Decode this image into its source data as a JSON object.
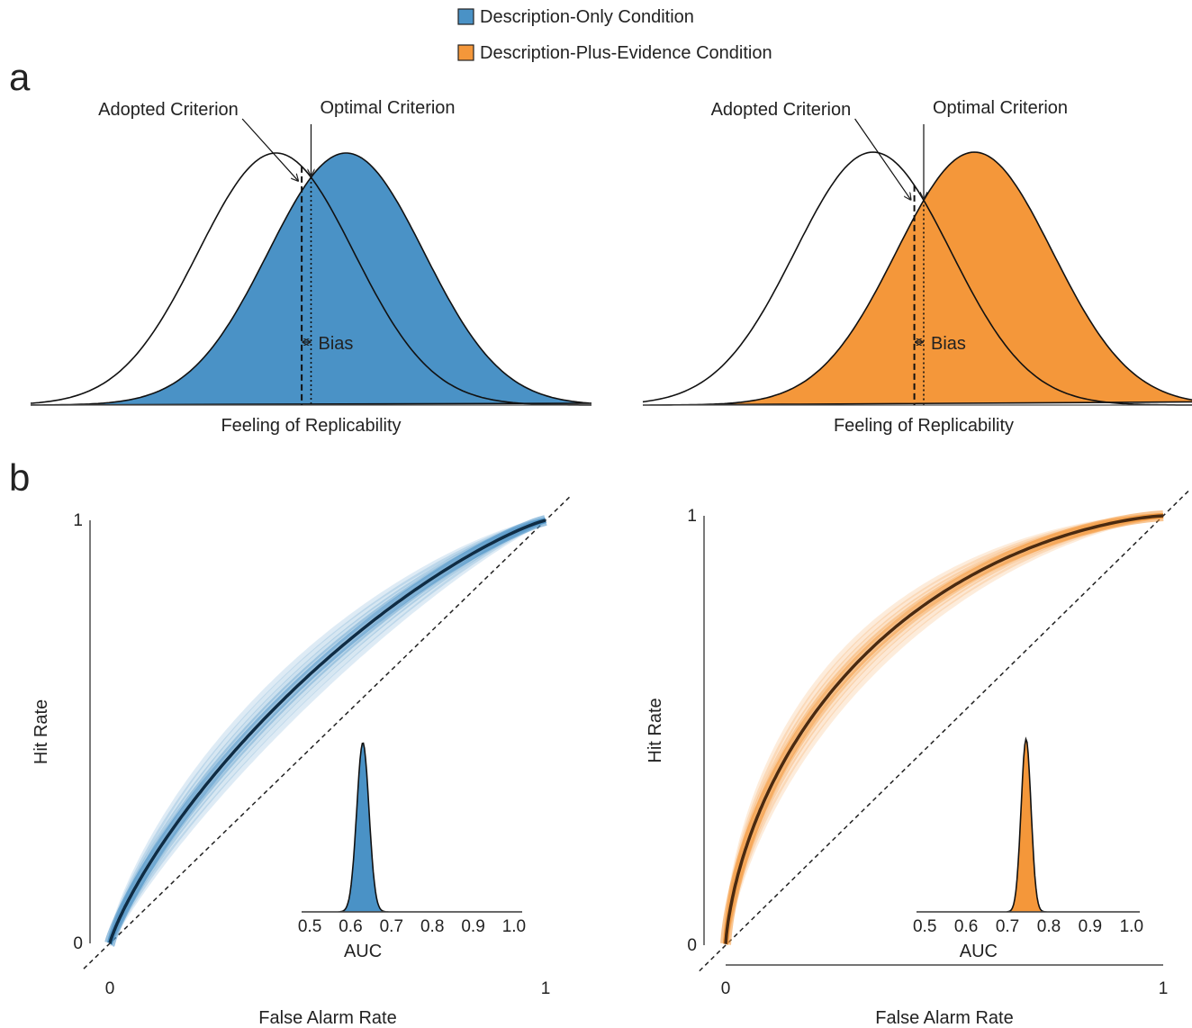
{
  "legend": {
    "items": [
      {
        "label": "Description-Only Condition",
        "color": "#4a92c6"
      },
      {
        "label": "Description-Plus-Evidence Condition",
        "color": "#f4973a"
      }
    ]
  },
  "panels": {
    "a": "a",
    "b": "b"
  },
  "chart_data": [
    {
      "type": "area",
      "condition": "Description-Only Condition",
      "xlabel": "Feeling of Replicability",
      "annotations": {
        "adopted": "Adopted Criterion",
        "optimal": "Optimal Criterion",
        "bias": "Bias"
      },
      "noise_mean": -0.45,
      "signal_mean": 0.45,
      "sd": 1,
      "adopted_criterion": -0.12,
      "optimal_criterion": 0.0,
      "xlim": [
        -3.6,
        3.6
      ],
      "fill_color": "#4a92c6"
    },
    {
      "type": "area",
      "condition": "Description-Plus-Evidence Condition",
      "xlabel": "Feeling of Replicability",
      "annotations": {
        "adopted": "Adopted Criterion",
        "optimal": "Optimal Criterion",
        "bias": "Bias"
      },
      "noise_mean": -0.65,
      "signal_mean": 0.65,
      "sd": 1,
      "adopted_criterion": -0.12,
      "optimal_criterion": 0.0,
      "xlim": [
        -3.6,
        3.6
      ],
      "fill_color": "#f4973a"
    },
    {
      "type": "line",
      "condition": "Description-Only Condition",
      "xlabel": "False Alarm Rate",
      "ylabel": "Hit Rate",
      "xlim": [
        0,
        1
      ],
      "ylim": [
        0,
        1
      ],
      "x_ticks": [
        "0",
        "1"
      ],
      "y_ticks": [
        "0",
        "1"
      ],
      "d_prime": 0.45,
      "band_color": "#4a92c6",
      "line_color": "#0f2c44",
      "inset": {
        "xlabel": "AUC",
        "ticks": [
          "0.5",
          "0.6",
          "0.7",
          "0.8",
          "0.9",
          "1.0"
        ],
        "tick_values": [
          0.5,
          0.6,
          0.7,
          0.8,
          0.9,
          1.0
        ],
        "xlim": [
          0.48,
          1.02
        ],
        "mean": 0.63,
        "sd": 0.015,
        "fill_color": "#4a92c6"
      }
    },
    {
      "type": "line",
      "condition": "Description-Plus-Evidence Condition",
      "xlabel": "False Alarm Rate",
      "ylabel": "Hit Rate",
      "xlim": [
        0,
        1
      ],
      "ylim": [
        0,
        1
      ],
      "x_ticks": [
        "0",
        "1"
      ],
      "y_ticks": [
        "0",
        "1"
      ],
      "d_prime": 0.93,
      "band_color": "#f4973a",
      "line_color": "#4a2a10",
      "inset": {
        "xlabel": "AUC",
        "ticks": [
          "0.5",
          "0.6",
          "0.7",
          "0.8",
          "0.9",
          "1.0"
        ],
        "tick_values": [
          0.5,
          0.6,
          0.7,
          0.8,
          0.9,
          1.0
        ],
        "xlim": [
          0.48,
          1.02
        ],
        "mean": 0.745,
        "sd": 0.012,
        "fill_color": "#f4973a"
      }
    }
  ]
}
